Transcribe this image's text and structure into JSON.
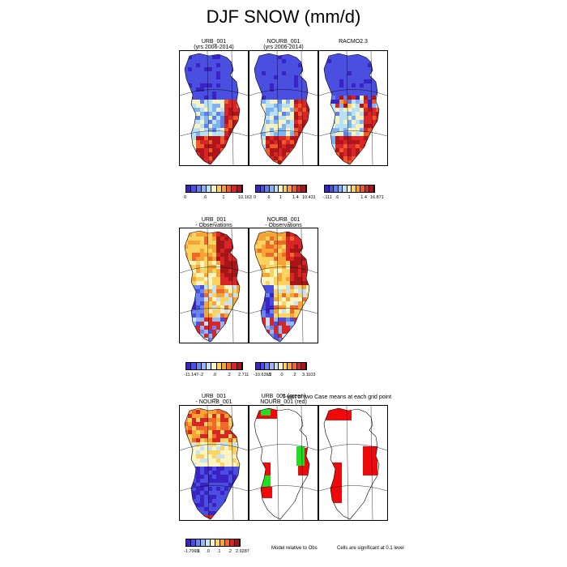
{
  "title": "DJF SNOW (mm/d)",
  "rows": [
    {
      "panels": [
        {
          "title": [
            "URB_001",
            "(yrs 2006-2014)"
          ],
          "scheme": "rainbow_pos"
        },
        {
          "title": [
            "NOURB_001",
            "(yrs 2006-2014)"
          ],
          "scheme": "rainbow_pos"
        },
        {
          "title": [
            "RACMO2.3"
          ],
          "scheme": "rainbow_mixed"
        }
      ]
    },
    {
      "panels": [
        {
          "title": [
            "URB_001",
            "- Observations"
          ],
          "scheme": "diff"
        },
        {
          "title": [
            "NOURB_001",
            "- Observations"
          ],
          "scheme": "diff"
        }
      ]
    },
    {
      "panels": [
        {
          "title": [
            "URB_001",
            "- NOURB_001"
          ],
          "scheme": "diff_blue"
        },
        {
          "title": [
            "URB_001 (green)",
            "NOURB_001 (red)"
          ],
          "scheme": "sig_gr"
        },
        {
          "title": [],
          "scheme": "sig_r"
        }
      ]
    }
  ],
  "overlap_text": "T-test of two Case means at each grid point",
  "colorbars": [
    {
      "labels": [
        "0",
        ".6",
        "1",
        "10.163"
      ]
    },
    {
      "labels": [
        "0",
        ".6",
        "1",
        "1.4",
        "10.431"
      ]
    },
    {
      "labels": [
        "-.111",
        ".6",
        "1",
        "1.4",
        "16.871"
      ]
    },
    {
      "labels": [
        "-11.147",
        "-.2",
        ".0",
        ".2",
        "2.711"
      ]
    },
    {
      "labels": [
        "-10.6355",
        "-.2",
        ".0",
        ".2",
        "3.1103"
      ]
    },
    {
      "labels": [
        "-1.7009",
        "-.1",
        ".0",
        ".1",
        ".2",
        "2.9287"
      ]
    }
  ],
  "notes": {
    "model_relative": "Model relative to Obs",
    "significance": "Cells are significant at 0.1 level"
  },
  "colors": {
    "rainbow": [
      "#3a22c6",
      "#4a4fe0",
      "#5f7fee",
      "#7fb3f2",
      "#b9e1f6",
      "#f7f3c0",
      "#fbd15a",
      "#f79d34",
      "#ef5a2a",
      "#d92525",
      "#b0151b"
    ],
    "diverging": [
      "#3a22c6",
      "#4a4fe0",
      "#6a86ee",
      "#95b8f3",
      "#c7e2f7",
      "#fbf5c4",
      "#fcd35f",
      "#f7a437",
      "#ef6a2a",
      "#d92525",
      "#a51618"
    ],
    "sig_red": "#ee0a0a",
    "sig_green": "#22dd22"
  }
}
